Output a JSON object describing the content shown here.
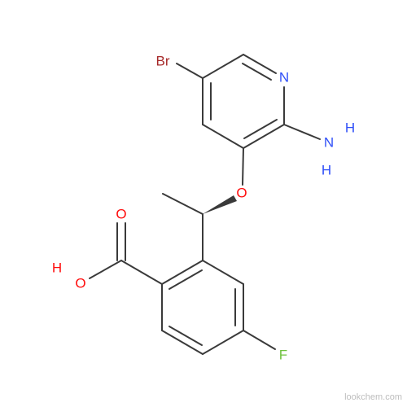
{
  "atoms": [
    {
      "label": "Br"
    },
    {
      "label": "N"
    },
    {
      "label": "H"
    },
    {
      "label": "N"
    },
    {
      "label": "H"
    },
    {
      "label": "O"
    },
    {
      "label": "O"
    },
    {
      "label": "H"
    },
    {
      "label": "O"
    },
    {
      "label": "F"
    }
  ],
  "watermark": "lookchem.com"
}
